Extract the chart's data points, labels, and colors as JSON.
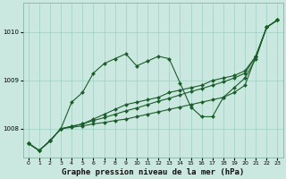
{
  "bg_color": "#cbe8e0",
  "plot_bg_color": "#cbe8e0",
  "grid_color": "#9ecfbf",
  "line_color": "#1a5c2a",
  "marker_color": "#1a5c2a",
  "title": "Graphe pression niveau de la mer (hPa)",
  "xlim": [
    -0.5,
    23.5
  ],
  "ylim": [
    1007.4,
    1010.6
  ],
  "yticks": [
    1008,
    1009,
    1010
  ],
  "xtick_labels": [
    "0",
    "1",
    "2",
    "3",
    "4",
    "5",
    "6",
    "7",
    "8",
    "9",
    "10",
    "11",
    "12",
    "13",
    "14",
    "15",
    "16",
    "17",
    "18",
    "19",
    "20",
    "21",
    "22",
    "23"
  ],
  "series": [
    [
      1007.7,
      1007.55,
      1007.75,
      1008.0,
      1008.55,
      1008.75,
      1009.15,
      1009.35,
      1009.45,
      1009.55,
      1009.3,
      1009.4,
      1009.5,
      1009.45,
      1008.95,
      1008.45,
      1008.25,
      1008.25,
      1008.65,
      1008.85,
      1009.05,
      1009.45,
      1010.1,
      1010.25
    ],
    [
      1007.7,
      1007.55,
      1007.75,
      1008.0,
      1008.05,
      1008.1,
      1008.2,
      1008.3,
      1008.4,
      1008.5,
      1008.55,
      1008.6,
      1008.65,
      1008.75,
      1008.8,
      1008.85,
      1008.9,
      1009.0,
      1009.05,
      1009.1,
      1009.2,
      1009.5,
      1010.1,
      1010.25
    ],
    [
      1007.7,
      1007.55,
      1007.75,
      1008.0,
      1008.05,
      1008.1,
      1008.17,
      1008.23,
      1008.3,
      1008.37,
      1008.43,
      1008.5,
      1008.57,
      1008.63,
      1008.7,
      1008.77,
      1008.83,
      1008.9,
      1008.97,
      1009.05,
      1009.15,
      1009.5,
      1010.1,
      1010.25
    ],
    [
      1007.7,
      1007.55,
      1007.75,
      1008.0,
      1008.03,
      1008.06,
      1008.1,
      1008.13,
      1008.17,
      1008.2,
      1008.25,
      1008.3,
      1008.35,
      1008.4,
      1008.45,
      1008.5,
      1008.55,
      1008.6,
      1008.65,
      1008.75,
      1008.9,
      1009.5,
      1010.1,
      1010.25
    ]
  ],
  "title_fontsize": 6.5,
  "tick_fontsize": 5,
  "linewidth": 0.8,
  "markersize": 2.2
}
